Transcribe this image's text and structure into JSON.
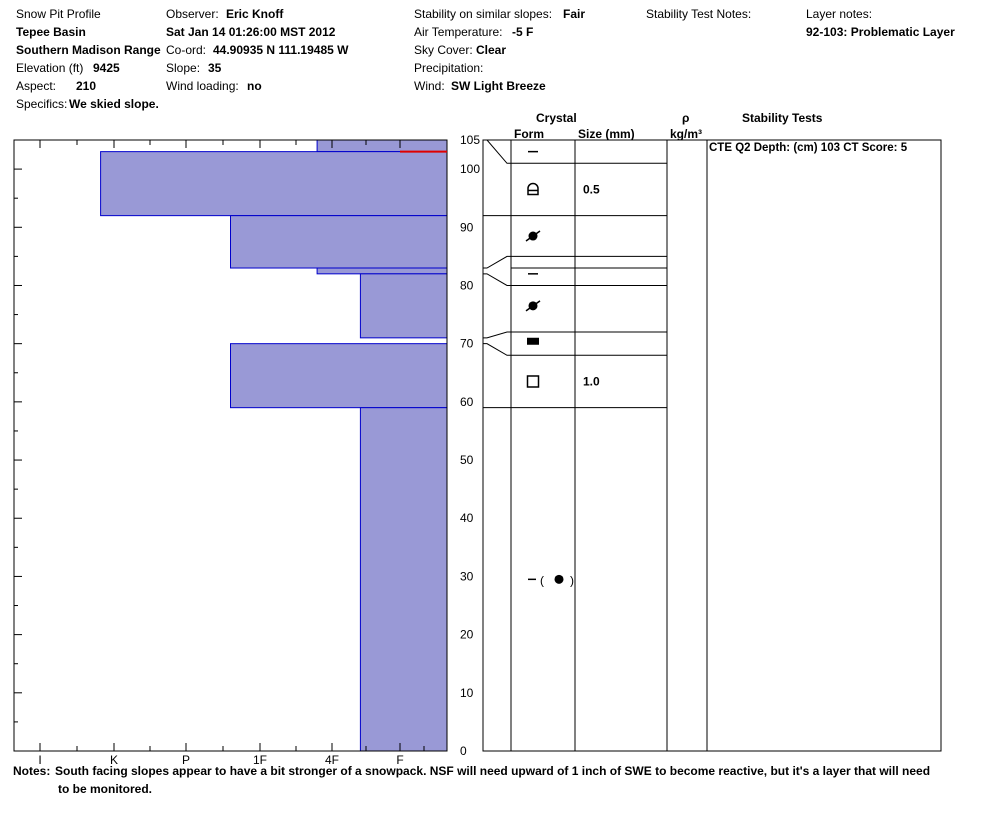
{
  "header": {
    "profile_title": "Snow Pit Profile",
    "location": "Tepee Basin",
    "range": "Southern Madison Range",
    "elevation_label": "Elevation (ft)",
    "elevation_value": "9425",
    "aspect_label": "Aspect:",
    "aspect_value": "210",
    "specifics_label": "Specifics:",
    "specifics_value": "We skied slope.",
    "observer_label": "Observer:",
    "observer_value": "Eric Knoff",
    "datetime": "Sat Jan 14 01:26:00 MST 2012",
    "coord_label": "Co-ord:",
    "coord_value": "44.90935 N 111.19485 W",
    "slope_label": "Slope:",
    "slope_value": "35",
    "wind_loading_label": "Wind loading:",
    "wind_loading_value": "no",
    "stability_label": "Stability on similar slopes:",
    "stability_value": "Fair",
    "air_temp_label": "Air Temperature:",
    "air_temp_value": "-5 F",
    "sky_label": "Sky Cover:",
    "sky_value": "Clear",
    "precip_label": "Precipitation:",
    "precip_value": "",
    "wind_label": "Wind:",
    "wind_value": "SW Light Breeze",
    "stability_notes_label": "Stability Test Notes:",
    "layer_notes_label": "Layer notes:",
    "layer_notes_value": "92-103: Problematic Layer"
  },
  "columns": {
    "crystal": "Crystal",
    "form": "Form",
    "size": "Size (mm)",
    "rho": "ρ",
    "density_unit": "kg/m³",
    "stability_tests": "Stability Tests"
  },
  "stability_test_entry": "CTE Q2 Depth: (cm) 103 CT Score: 5",
  "notes_label": "Notes:",
  "notes_line1": "South facing slopes appear to have a bit stronger of a snowpack.  NSF will need upward of 1 inch of SWE to become reactive, but it's a layer that will need",
  "notes_line2": "to be monitored.",
  "colors": {
    "layer_fill": "#9999d6",
    "layer_edge": "#0000cc",
    "marker": "#e00000"
  },
  "chart_data": {
    "type": "bar",
    "orientation": "horizontal",
    "title": "",
    "y_axis": {
      "range": [
        0,
        105
      ],
      "ticks": [
        0,
        10,
        20,
        30,
        40,
        50,
        60,
        70,
        80,
        90,
        100,
        105
      ]
    },
    "x_axis": {
      "categories": [
        "I",
        "K",
        "P",
        "1F",
        "4F",
        "F"
      ]
    },
    "layers": [
      {
        "bottom": 103,
        "top": 105,
        "hardness": 0.7
      },
      {
        "bottom": 92,
        "top": 103,
        "hardness": 0.2
      },
      {
        "bottom": 83,
        "top": 92,
        "hardness": 0.5
      },
      {
        "bottom": 82,
        "top": 83,
        "hardness": 0.7
      },
      {
        "bottom": 71,
        "top": 82,
        "hardness": 0.8
      },
      {
        "bottom": 70,
        "top": 71,
        "hardness": 1.0
      },
      {
        "bottom": 59,
        "top": 70,
        "hardness": 0.5
      },
      {
        "bottom": 0,
        "top": 59,
        "hardness": 0.8
      }
    ],
    "marker_depth": 103,
    "layer_boundaries": [
      0,
      59,
      68,
      72,
      80,
      83,
      85,
      92,
      101,
      105
    ],
    "connectors": [
      {
        "from": 105,
        "to": 101
      },
      {
        "from": 92,
        "to": 92
      },
      {
        "from": 83,
        "to": 85
      },
      {
        "from": 82,
        "to": 80
      },
      {
        "from": 71,
        "to": 72
      },
      {
        "from": 70,
        "to": 68
      },
      {
        "from": 59,
        "to": 59
      }
    ],
    "crystals": [
      {
        "depth": 103,
        "symbol": "dash",
        "size": ""
      },
      {
        "depth": 96.5,
        "symbol": "arch",
        "size": "0.5"
      },
      {
        "depth": 88.5,
        "symbol": "slash-dot",
        "size": ""
      },
      {
        "depth": 82,
        "symbol": "dash",
        "size": ""
      },
      {
        "depth": 76.5,
        "symbol": "slash-dot",
        "size": ""
      },
      {
        "depth": 70.5,
        "symbol": "box-filled",
        "size": ""
      },
      {
        "depth": 63.5,
        "symbol": "square",
        "size": "1.0"
      },
      {
        "depth": 29.5,
        "symbol": "rounds",
        "size": ""
      }
    ]
  }
}
